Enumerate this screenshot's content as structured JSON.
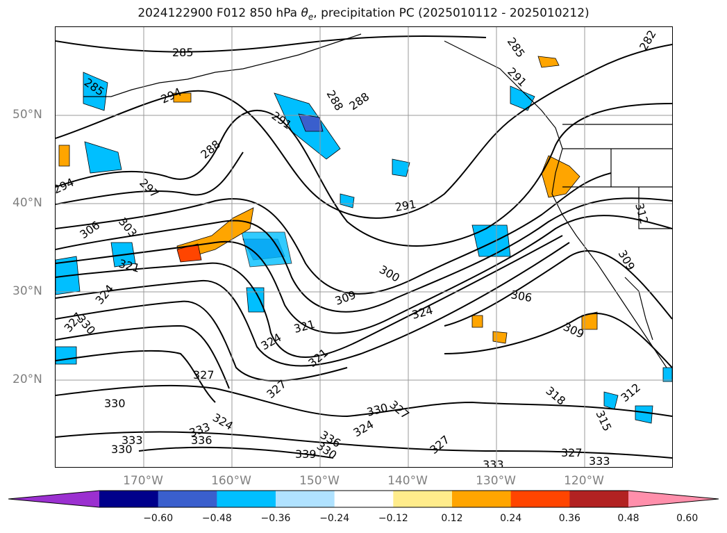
{
  "title_prefix": "2024122900 F012 850 hPa ",
  "title_symbol": "θ",
  "title_subscript": "e",
  "title_suffix": ", precipitation PC (2025010112 - 2025010212)",
  "lat_labels": [
    "50°N",
    "40°N",
    "30°N",
    "20°N"
  ],
  "lon_labels": [
    "170°W",
    "160°W",
    "150°W",
    "140°W",
    "130°W",
    "120°W"
  ],
  "colorbar": {
    "ticks": [
      "−0.60",
      "−0.48",
      "−0.36",
      "−0.24",
      "−0.12",
      "0.12",
      "0.24",
      "0.36",
      "0.48",
      "0.60"
    ],
    "colors": [
      "#9b30d0",
      "#00008b",
      "#3a5fcd",
      "#00bfff",
      "#b0e2ff",
      "#ffffff",
      "#ffec8b",
      "#ffa500",
      "#ff4500",
      "#b22222",
      "#ff8fab"
    ]
  },
  "contour_labels": [
    "285",
    "285",
    "285",
    "282",
    "288",
    "288",
    "288",
    "291",
    "291",
    "291",
    "294",
    "294",
    "297",
    "300",
    "303",
    "306",
    "306",
    "309",
    "309",
    "309",
    "312",
    "312",
    "315",
    "318",
    "321",
    "321",
    "321",
    "324",
    "324",
    "324",
    "324",
    "324",
    "327",
    "327",
    "327",
    "327",
    "327",
    "327",
    "330",
    "330",
    "330",
    "330",
    "330",
    "333",
    "333",
    "333",
    "333",
    "336",
    "336",
    "339"
  ],
  "colors": {
    "positive_anomaly": "#ffa500",
    "negative_anomaly": "#00bfff",
    "contour_line": "#000000",
    "grid_line": "#999999",
    "coastline": "#000000"
  }
}
